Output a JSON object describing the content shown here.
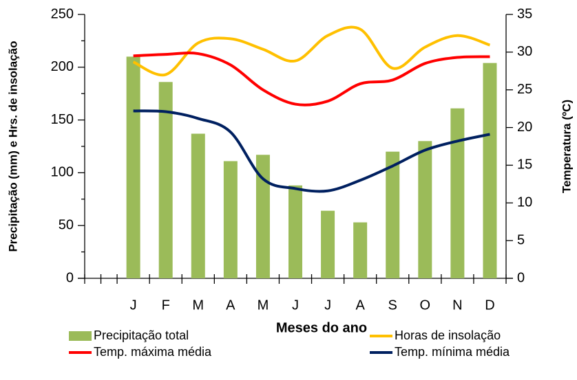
{
  "chart_data": {
    "type": "bar-line",
    "x_label": "Meses do ano",
    "y_label": "Precipitação (mm) e Hrs. de insolação",
    "y2_label": "Temperatura (ºC)",
    "categories": [
      null,
      "J",
      "F",
      "M",
      "A",
      "M",
      "J",
      "J",
      "A",
      "S",
      "O",
      "N",
      "D"
    ],
    "series": [
      {
        "name": "Precipitação total",
        "type": "bar",
        "color": "#9bbb59",
        "values": [
          null,
          210,
          186,
          137,
          111,
          117,
          88,
          64,
          53,
          120,
          130,
          161,
          204
        ]
      },
      {
        "name": "Horas de insolação",
        "type": "line",
        "color": "#ffc000",
        "values": [
          null,
          205,
          193,
          223,
          227,
          217,
          206,
          230,
          236,
          199,
          219,
          230,
          221
        ]
      },
      {
        "name": "Temp. máxima média",
        "type": "line",
        "axis": "y2",
        "color": "#ff0000",
        "values": [
          null,
          29.5,
          29.7,
          29.8,
          28.3,
          25.0,
          23.1,
          23.5,
          25.8,
          26.3,
          28.5,
          29.3,
          29.4
        ]
      },
      {
        "name": "Temp. mínima média",
        "type": "line",
        "axis": "y2",
        "color": "#002060",
        "values": [
          null,
          22.2,
          22.1,
          21.2,
          19.4,
          13.2,
          11.9,
          11.6,
          13.0,
          14.9,
          17.0,
          18.2,
          19.1
        ]
      }
    ],
    "ylim": [
      0,
      250
    ],
    "yticks": [
      0,
      50,
      100,
      150,
      200,
      250
    ],
    "y2lim": [
      0,
      35
    ],
    "y2ticks": [
      0,
      5,
      10,
      15,
      20,
      25,
      30,
      35
    ],
    "grid": false,
    "legend": "bottom"
  }
}
